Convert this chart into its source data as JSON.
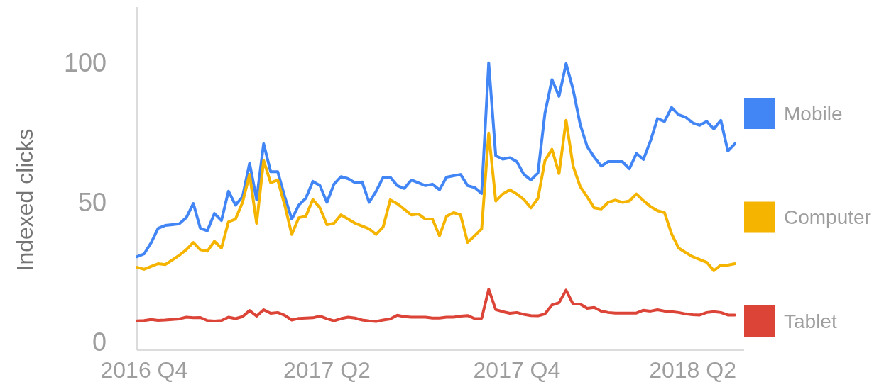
{
  "chart_data": {
    "type": "line",
    "ylabel": "Indexed clicks",
    "categories": [
      null,
      "2016 Q4",
      null,
      null,
      null,
      null,
      null,
      null,
      null,
      null,
      null,
      null,
      null,
      null,
      null,
      null,
      null,
      null,
      null,
      null,
      null,
      null,
      null,
      null,
      null,
      null,
      null,
      "2017 Q2",
      null,
      null,
      null,
      null,
      null,
      null,
      null,
      null,
      null,
      null,
      null,
      null,
      null,
      null,
      null,
      null,
      null,
      null,
      null,
      null,
      null,
      null,
      null,
      null,
      null,
      null,
      "2017 Q4",
      null,
      null,
      null,
      null,
      null,
      null,
      null,
      null,
      null,
      null,
      null,
      null,
      null,
      null,
      null,
      null,
      null,
      null,
      null,
      null,
      null,
      null,
      null,
      null,
      "2018 Q2",
      null,
      null,
      null,
      null,
      null,
      null
    ],
    "series": [
      {
        "name": "Mobile",
        "color": "#4285f4",
        "values": [
          30.5,
          31.5,
          35.5,
          40.7,
          41.7,
          42,
          42.3,
          44.5,
          49.6,
          40.7,
          39.8,
          46,
          43.5,
          54,
          49,
          52,
          64,
          51,
          71,
          61,
          61,
          52,
          44,
          49,
          51.5,
          57.5,
          56,
          50,
          56.5,
          59.2,
          58.5,
          57,
          57.3,
          50,
          54,
          59,
          59,
          56,
          55,
          58,
          57,
          56,
          56.5,
          54.5,
          59,
          59.5,
          60,
          56,
          55.3,
          53.2,
          100,
          66.7,
          65.5,
          66,
          64.6,
          60,
          58,
          60.5,
          82,
          94,
          88,
          99.7,
          90.5,
          78,
          70,
          66.2,
          63,
          64.6,
          64.6,
          64.6,
          62,
          67.5,
          65.4,
          72,
          80,
          79,
          84,
          81.4,
          80.5,
          78.5,
          77.6,
          79,
          76.3,
          79.4,
          68.4,
          71
        ]
      },
      {
        "name": "Computer",
        "color": "#f4b400",
        "values": [
          26.7,
          26,
          27,
          28,
          27.7,
          29.3,
          31,
          33,
          35.6,
          33,
          32.5,
          36,
          33.6,
          43,
          44,
          50,
          60,
          42.5,
          65,
          57,
          58,
          49,
          38.5,
          44.5,
          45,
          51,
          48,
          42,
          42.5,
          45.5,
          44,
          42.5,
          41.5,
          40.5,
          38.5,
          41.2,
          50.9,
          49.5,
          47.5,
          45.5,
          45.8,
          44,
          44,
          38,
          45,
          46.3,
          45.5,
          35.6,
          38,
          40.5,
          74.8,
          50.5,
          53,
          54.5,
          53,
          51,
          48,
          51.4,
          65,
          69,
          60.3,
          79.4,
          63,
          55.7,
          52,
          48,
          47.6,
          50,
          50.8,
          50,
          50.5,
          53,
          50.6,
          48.5,
          47,
          46.3,
          38.7,
          33.6,
          32,
          30.5,
          29.5,
          28.5,
          25.5,
          27.5,
          27.5,
          28
        ]
      },
      {
        "name": "Tablet",
        "color": "#db4437",
        "values": [
          7.5,
          7.6,
          8,
          7.7,
          7.8,
          8,
          8.2,
          8.8,
          8.6,
          8.7,
          7.6,
          7.4,
          7.6,
          8.8,
          8.3,
          9,
          11.2,
          9.2,
          11.5,
          10.2,
          10.5,
          9.5,
          7.8,
          8.4,
          8.5,
          8.6,
          9.2,
          8.3,
          7.5,
          8.3,
          8.8,
          8.5,
          7.8,
          7.5,
          7.3,
          7.8,
          8.2,
          9.5,
          9,
          8.8,
          8.8,
          8.8,
          8.5,
          8.5,
          8.8,
          8.8,
          9.2,
          9.4,
          8.3,
          8.4,
          18.8,
          11.5,
          10.8,
          10.2,
          10.5,
          9.8,
          9.4,
          9.3,
          10,
          13.2,
          14,
          18.5,
          13.5,
          13.5,
          12,
          12.3,
          11,
          10.5,
          10.3,
          10.3,
          10.3,
          10.3,
          11.3,
          11,
          11.5,
          11,
          10.8,
          10.5,
          10,
          9.7,
          9.6,
          10.5,
          10.8,
          10.5,
          9.6,
          9.6
        ]
      }
    ],
    "ylim": [
      -3,
      120
    ],
    "yticks": [
      0,
      50,
      100
    ],
    "legend": "right",
    "line_style": "solid",
    "marker": "none"
  }
}
